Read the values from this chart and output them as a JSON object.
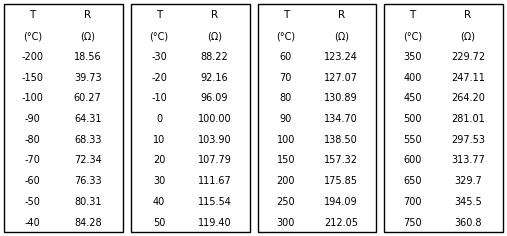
{
  "columns": [
    {
      "T": [
        "-200",
        "-150",
        "-100",
        "-90",
        "-80",
        "-70",
        "-60",
        "-50",
        "-40"
      ],
      "R": [
        "18.56",
        "39.73",
        "60.27",
        "64.31",
        "68.33",
        "72.34",
        "76.33",
        "80.31",
        "84.28"
      ]
    },
    {
      "T": [
        "-30",
        "-20",
        "-10",
        "0",
        "10",
        "20",
        "30",
        "40",
        "50"
      ],
      "R": [
        "88.22",
        "92.16",
        "96.09",
        "100.00",
        "103.90",
        "107.79",
        "111.67",
        "115.54",
        "119.40"
      ]
    },
    {
      "T": [
        "60",
        "70",
        "80",
        "90",
        "100",
        "150",
        "200",
        "250",
        "300"
      ],
      "R": [
        "123.24",
        "127.07",
        "130.89",
        "134.70",
        "138.50",
        "157.32",
        "175.85",
        "194.09",
        "212.05"
      ]
    },
    {
      "T": [
        "350",
        "400",
        "450",
        "500",
        "550",
        "600",
        "650",
        "700",
        "750"
      ],
      "R": [
        "229.72",
        "247.11",
        "264.20",
        "281.01",
        "297.53",
        "313.77",
        "329.7",
        "345.5",
        "360.8"
      ]
    }
  ],
  "header_T": "T",
  "header_R": "R",
  "subheader_T": "(°C)",
  "subheader_R": "(Ω)",
  "bg_color": "#ffffff",
  "border_color": "#000000",
  "text_color": "#000000",
  "font_size": 7.0,
  "figwidth": 5.07,
  "figheight": 2.36,
  "dpi": 100
}
